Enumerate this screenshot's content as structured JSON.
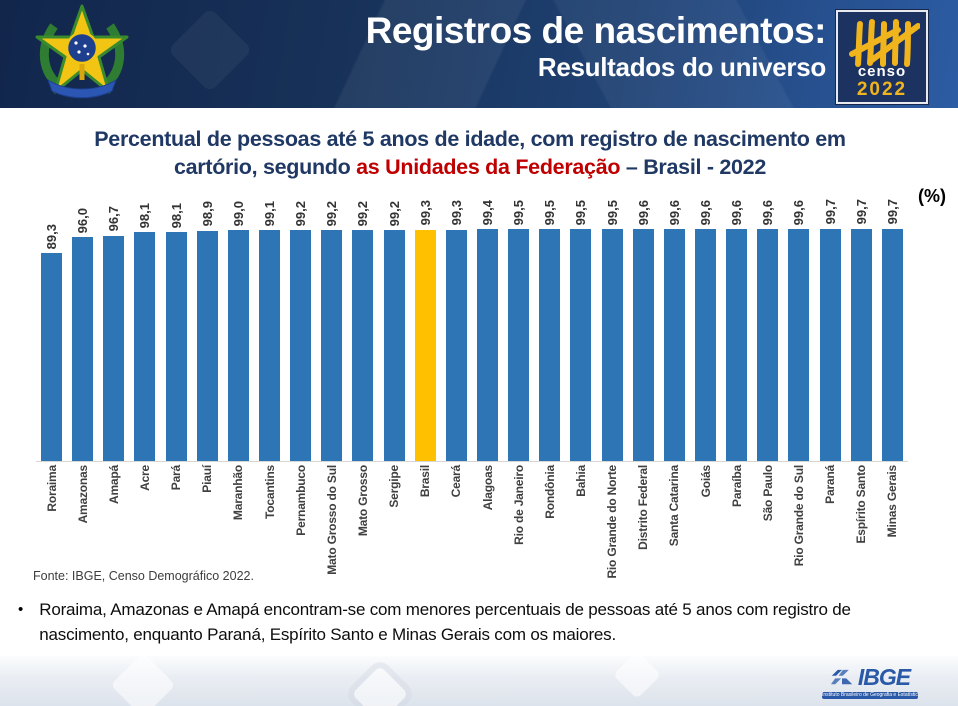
{
  "header": {
    "title": "Registros de nascimentos:",
    "subtitle": "Resultados do universo",
    "censo_logo": {
      "word": "censo",
      "year": "2022",
      "bg_color": "#1c3260",
      "tally_color": "#F0B41C"
    }
  },
  "chart_data": {
    "type": "bar",
    "title": "Percentual de pessoas até 5 anos de idade, com registro de nascimento em cartório, segundo as Unidades da Federação – Brasil - 2022",
    "title_lines": {
      "line1": "Percentual de pessoas até 5 anos de idade, com registro de nascimento em",
      "line2_pre": "cartório, segundo ",
      "line2_highlight": "as Unidades da Federação",
      "line2_post": " – Brasil - 2022"
    },
    "unit_label": "(%)",
    "ylim": [
      0,
      100
    ],
    "grid": false,
    "legend": "none",
    "bar_color": "#2E75B6",
    "highlight_color": "#FFC000",
    "highlight_category": "Brasil",
    "categories": [
      "Roraima",
      "Amazonas",
      "Amapá",
      "Acre",
      "Pará",
      "Piauí",
      "Maranhão",
      "Tocantins",
      "Pernambuco",
      "Mato Grosso do Sul",
      "Mato Grosso",
      "Sergipe",
      "Brasil",
      "Ceará",
      "Alagoas",
      "Rio de Janeiro",
      "Rondônia",
      "Bahia",
      "Rio Grande do Norte",
      "Distrito Federal",
      "Santa Catarina",
      "Goiás",
      "Paraíba",
      "São Paulo",
      "Rio Grande do Sul",
      "Paraná",
      "Espírito Santo",
      "Minas Gerais"
    ],
    "values": [
      89.3,
      96.0,
      96.7,
      98.1,
      98.1,
      98.9,
      99.0,
      99.1,
      99.2,
      99.2,
      99.2,
      99.2,
      99.3,
      99.3,
      99.4,
      99.5,
      99.5,
      99.5,
      99.5,
      99.6,
      99.6,
      99.6,
      99.6,
      99.6,
      99.6,
      99.7,
      99.7,
      99.7
    ],
    "value_labels": [
      "89,3",
      "96,0",
      "96,7",
      "98,1",
      "98,1",
      "98,9",
      "99,0",
      "99,1",
      "99,2",
      "99,2",
      "99,2",
      "99,2",
      "99,3",
      "99,3",
      "99,4",
      "99,5",
      "99,5",
      "99,5",
      "99,5",
      "99,6",
      "99,6",
      "99,6",
      "99,6",
      "99,6",
      "99,6",
      "99,7",
      "99,7",
      "99,7"
    ]
  },
  "source": "Fonte: IBGE, Censo Demográfico 2022.",
  "bullet": {
    "marker": "•",
    "text": "Roraima, Amazonas e Amapá encontram-se com menores percentuais de pessoas até 5 anos com registro de nascimento, enquanto Paraná, Espírito Santo e Minas Gerais com os maiores."
  },
  "footer": {
    "ibge_text": "IBGE",
    "ibge_subtext": "Instituto Brasileiro de Geografia e Estatística",
    "ibge_color": "#2A59A8"
  }
}
